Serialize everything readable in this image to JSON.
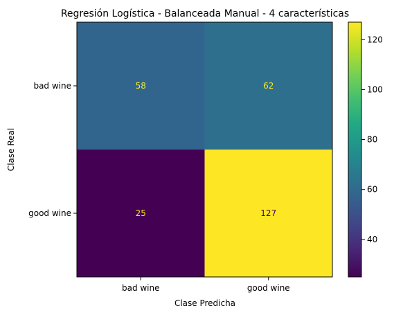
{
  "chart_data": {
    "type": "heatmap",
    "title": "Regresión Logística - Balanceada Manual - 4 características",
    "xlabel": "Clase Predicha",
    "ylabel": "Clase Real",
    "x_categories": [
      "bad wine",
      "good wine"
    ],
    "y_categories": [
      "bad wine",
      "good wine"
    ],
    "values": [
      [
        58,
        62
      ],
      [
        25,
        127
      ]
    ],
    "colormap": "viridis",
    "colorbar": {
      "min": 25,
      "max": 127,
      "ticks": [
        40,
        60,
        80,
        100,
        120
      ]
    },
    "cell_text_colors": {
      "dark_cell": "#f9e721",
      "light_cell": "#440154"
    }
  }
}
